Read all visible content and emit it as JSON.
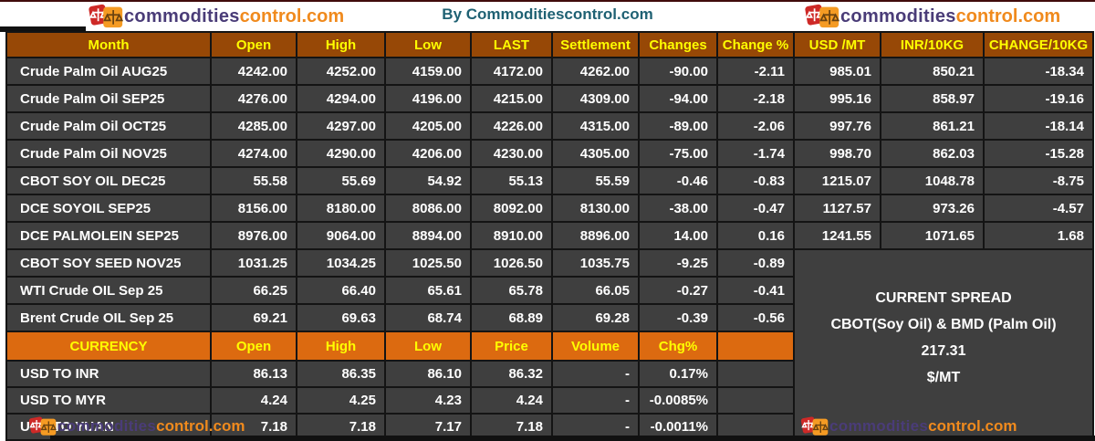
{
  "page": {
    "center_title": "By Commoditiescontrol.com"
  },
  "logo": {
    "commodities": "commodities",
    "control": "control.com"
  },
  "colors": {
    "header_bg": "#974806",
    "currency_header_bg": "#dc6a10",
    "row_bg": "#3f3f3f",
    "spread_box_bg": "#595959",
    "header_text": "#ffff00",
    "row_text": "#ffffff",
    "highlight_text": "#ffff00",
    "byline_text": "#1f6173",
    "logo_purple": "#4a3c78",
    "logo_orange": "#f08a1d",
    "grid_border": "#141414"
  },
  "futures_table": {
    "headers": [
      "Month",
      "Open",
      "High",
      "Low",
      "LAST",
      "Settlement",
      "Changes",
      "Change %",
      "USD /MT",
      "INR/10KG",
      "CHANGE/10KG"
    ],
    "rows": [
      {
        "month": "Crude Palm Oil AUG25",
        "highlight": false,
        "values": [
          "4242.00",
          "4252.00",
          "4159.00",
          "4172.00",
          "4262.00",
          "-90.00",
          "-2.11",
          "985.01",
          "850.21",
          "-18.34"
        ]
      },
      {
        "month": "Crude Palm Oil SEP25",
        "highlight": false,
        "values": [
          "4276.00",
          "4294.00",
          "4196.00",
          "4215.00",
          "4309.00",
          "-94.00",
          "-2.18",
          "995.16",
          "858.97",
          "-19.16"
        ]
      },
      {
        "month": "Crude Palm Oil OCT25",
        "highlight": true,
        "values": [
          "4285.00",
          "4297.00",
          "4205.00",
          "4226.00",
          "4315.00",
          "-89.00",
          "-2.06",
          "997.76",
          "861.21",
          "-18.14"
        ]
      },
      {
        "month": "Crude Palm Oil NOV25",
        "highlight": false,
        "values": [
          "4274.00",
          "4290.00",
          "4206.00",
          "4230.00",
          "4305.00",
          "-75.00",
          "-1.74",
          "998.70",
          "862.03",
          "-15.28"
        ]
      },
      {
        "month": "CBOT SOY OIL DEC25",
        "highlight": false,
        "values": [
          "55.58",
          "55.69",
          "54.92",
          "55.13",
          "55.59",
          "-0.46",
          "-0.83",
          "1215.07",
          "1048.78",
          "-8.75"
        ]
      },
      {
        "month": "DCE SOYOIL SEP25",
        "highlight": false,
        "values": [
          "8156.00",
          "8180.00",
          "8086.00",
          "8092.00",
          "8130.00",
          "-38.00",
          "-0.47",
          "1127.57",
          "973.26",
          "-4.57"
        ]
      },
      {
        "month": "DCE PALMOLEIN SEP25",
        "highlight": false,
        "values": [
          "8976.00",
          "9064.00",
          "8894.00",
          "8910.00",
          "8896.00",
          "14.00",
          "0.16",
          "1241.55",
          "1071.65",
          "1.68"
        ]
      },
      {
        "month": "CBOT SOY SEED NOV25",
        "highlight": false,
        "values": [
          "1031.25",
          "1034.25",
          "1025.50",
          "1026.50",
          "1035.75",
          "-9.25",
          "-0.89"
        ]
      },
      {
        "month": "WTI Crude OIL Sep 25",
        "highlight": false,
        "values": [
          "66.25",
          "66.40",
          "65.61",
          "65.78",
          "66.05",
          "-0.27",
          "-0.41"
        ]
      },
      {
        "month": "Brent Crude OIL Sep 25",
        "highlight": false,
        "values": [
          "69.21",
          "69.63",
          "68.74",
          "68.89",
          "69.28",
          "-0.39",
          "-0.56"
        ]
      }
    ]
  },
  "currency_table": {
    "headers": [
      "CURRENCY",
      "Open",
      "High",
      "Low",
      "Price",
      "Volume",
      "Chg%",
      ""
    ],
    "rows": [
      {
        "pair": "USD TO INR",
        "values": [
          "86.13",
          "86.35",
          "86.10",
          "86.32",
          "-",
          "0.17%",
          ""
        ]
      },
      {
        "pair": "USD TO MYR",
        "values": [
          "4.24",
          "4.25",
          "4.23",
          "4.24",
          "-",
          "-0.0085%",
          ""
        ]
      },
      {
        "pair": "USD TO YUAN",
        "values": [
          "7.18",
          "7.18",
          "7.17",
          "7.18",
          "-",
          "-0.0011%",
          ""
        ]
      }
    ]
  },
  "spread_box": {
    "title": "CURRENT SPREAD",
    "subtitle": "CBOT(Soy Oil) & BMD (Palm Oil)",
    "value": "217.31",
    "unit": "$/MT"
  }
}
